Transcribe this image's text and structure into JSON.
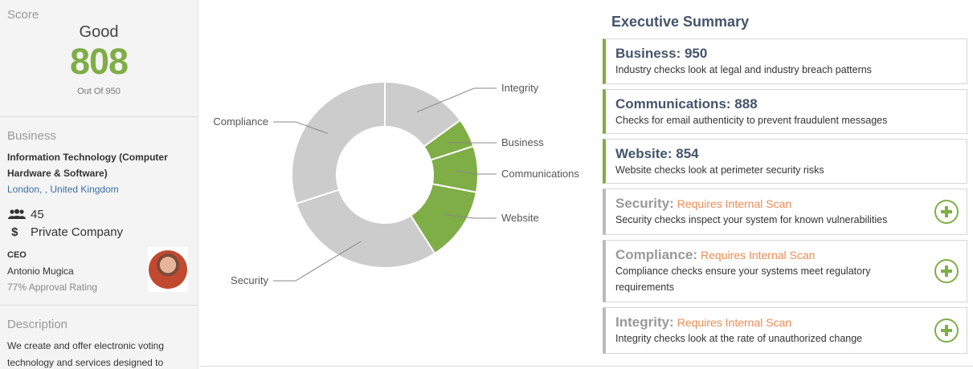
{
  "sidebar": {
    "score": {
      "title": "Score",
      "rating": "Good",
      "value": "808",
      "out_of": "Out Of 950"
    },
    "business": {
      "title": "Business",
      "industry": "Information Technology (Computer Hardware & Software)",
      "location": "London, , United Kingdom",
      "employees": "45",
      "company_type": "Private Company",
      "ceo_label": "CEO",
      "ceo_name": "Antonio Mugica",
      "ceo_approval": "77% Approval Rating"
    },
    "description": {
      "title": "Description",
      "text": "We create and offer electronic voting technology and services designed to"
    }
  },
  "chart_data": {
    "type": "pie",
    "variant": "donut",
    "slices": [
      {
        "label": "Integrity",
        "value": 15,
        "color": "#cccccc"
      },
      {
        "label": "Business",
        "value": 5,
        "color": "#7fad46"
      },
      {
        "label": "Communications",
        "value": 8,
        "color": "#7fad46"
      },
      {
        "label": "Website",
        "value": 13,
        "color": "#7fad46"
      },
      {
        "label": "Security",
        "value": 29,
        "color": "#cccccc"
      },
      {
        "label": "Compliance",
        "value": 30,
        "color": "#cccccc"
      }
    ]
  },
  "summary": {
    "title": "Executive Summary",
    "cards": [
      {
        "name": "Business: 950",
        "desc": "Industry checks look at legal and industry breach patterns",
        "status": "complete"
      },
      {
        "name": "Communications: 888",
        "desc": "Checks for email authenticity to prevent fraudulent messages",
        "status": "complete"
      },
      {
        "name": "Website: 854",
        "desc": "Website checks look at perimeter security risks",
        "status": "complete"
      },
      {
        "name": "Security:",
        "requirement": "Requires Internal Scan",
        "desc": "Security checks inspect your system for known vulnerabilities",
        "status": "locked"
      },
      {
        "name": "Compliance:",
        "requirement": "Requires Internal Scan",
        "desc": "Compliance checks ensure your systems meet regulatory requirements",
        "status": "locked"
      },
      {
        "name": "Integrity:",
        "requirement": "Requires Internal Scan",
        "desc": "Integrity checks look at the rate of unauthorized change",
        "status": "locked"
      }
    ]
  },
  "colors": {
    "accent_green": "#7fad46",
    "heading_slate": "#44546a",
    "requirement_orange": "#ef8b54",
    "neutral_gray": "#cccccc"
  },
  "icons": {
    "employees": "users-icon",
    "company_type": "dollar-icon",
    "expand": "plus-circle-icon"
  }
}
